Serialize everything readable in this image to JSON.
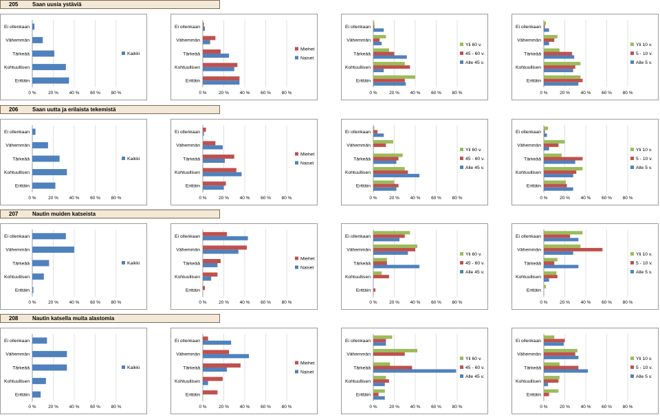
{
  "category_labels": [
    "Ei ollenkaan",
    "Vähemmän",
    "Tärkeää",
    "Kohtuullisen",
    "Erittäin"
  ],
  "axis_ticks": [
    "0 %",
    "20 %",
    "40 %",
    "60 %",
    "80 %"
  ],
  "colors": {
    "green": "#9bbb59",
    "red": "#c0504d",
    "blue": "#4f81bd"
  },
  "sections": [
    {
      "number": "205",
      "title": "Saan uusia ystäviä"
    },
    {
      "number": "206",
      "title": "Saan uutta ja erilaista tekemistä"
    },
    {
      "number": "207",
      "title": "Nautin muiden katseista"
    },
    {
      "number": "208",
      "title": "Nautin katsella muita alastomia"
    }
  ],
  "chart_data": [
    {
      "type": "bar",
      "section": "205",
      "panel": "total",
      "categories": [
        "Ei ollenkaan",
        "Vähemmän",
        "Tärkeää",
        "Kohtuullisen",
        "Erittäin"
      ],
      "xlim": [
        0,
        80
      ],
      "series": [
        {
          "name": "Kaikki",
          "color": "#4f81bd",
          "values": [
            2,
            10,
            21,
            32,
            35
          ]
        }
      ]
    },
    {
      "type": "bar",
      "section": "205",
      "panel": "gender",
      "categories": [
        "Ei ollenkaan",
        "Vähemmän",
        "Tärkeää",
        "Kohtuullisen",
        "Erittäin"
      ],
      "xlim": [
        0,
        80
      ],
      "series": [
        {
          "name": "Miehet",
          "color": "#c0504d",
          "values": [
            1,
            12,
            17,
            33,
            35
          ]
        },
        {
          "name": "Naiset",
          "color": "#4f81bd",
          "values": [
            2,
            7,
            25,
            30,
            35
          ]
        }
      ]
    },
    {
      "type": "bar",
      "section": "205",
      "panel": "age",
      "categories": [
        "Ei ollenkaan",
        "Vähemmän",
        "Tärkeää",
        "Kohtuullisen",
        "Erittäin"
      ],
      "xlim": [
        0,
        80
      ],
      "series": [
        {
          "name": "Yli 60 v.",
          "color": "#9bbb59",
          "values": [
            1,
            12,
            15,
            30,
            40
          ]
        },
        {
          "name": "45 - 60 v.",
          "color": "#c0504d",
          "values": [
            1,
            6,
            20,
            35,
            30
          ]
        },
        {
          "name": "Alle 45 v.",
          "color": "#4f81bd",
          "values": [
            10,
            8,
            32,
            10,
            31
          ]
        }
      ]
    },
    {
      "type": "bar",
      "section": "205",
      "panel": "years",
      "categories": [
        "Ei ollenkaan",
        "Vähemmän",
        "Tärkeää",
        "Kohtuullisen",
        "Erittäin"
      ],
      "xlim": [
        0,
        80
      ],
      "series": [
        {
          "name": "Yli 10 v.",
          "color": "#9bbb59",
          "values": [
            2,
            13,
            15,
            35,
            35
          ]
        },
        {
          "name": "5 - 10 v.",
          "color": "#c0504d",
          "values": [
            1,
            10,
            27,
            30,
            37
          ]
        },
        {
          "name": "Alle 5 v.",
          "color": "#4f81bd",
          "values": [
            5,
            5,
            29,
            28,
            33
          ]
        }
      ]
    },
    {
      "type": "bar",
      "section": "206",
      "panel": "total",
      "categories": [
        "Ei ollenkaan",
        "Vähemmän",
        "Tärkeää",
        "Kohtuullisen",
        "Erittäin"
      ],
      "xlim": [
        0,
        80
      ],
      "series": [
        {
          "name": "Kaikki",
          "color": "#4f81bd",
          "values": [
            3,
            15,
            26,
            33,
            22
          ]
        }
      ]
    },
    {
      "type": "bar",
      "section": "206",
      "panel": "gender",
      "categories": [
        "Ei ollenkaan",
        "Vähemmän",
        "Tärkeää",
        "Kohtuullisen",
        "Erittäin"
      ],
      "xlim": [
        0,
        80
      ],
      "series": [
        {
          "name": "Miehet",
          "color": "#c0504d",
          "values": [
            3,
            12,
            30,
            32,
            22
          ]
        },
        {
          "name": "Naiset",
          "color": "#4f81bd",
          "values": [
            1,
            19,
            21,
            37,
            20
          ]
        }
      ]
    },
    {
      "type": "bar",
      "section": "206",
      "panel": "age",
      "categories": [
        "Ei ollenkaan",
        "Vähemmän",
        "Tärkeää",
        "Kohtuullisen",
        "Erittäin"
      ],
      "xlim": [
        0,
        80
      ],
      "series": [
        {
          "name": "Yli 60 v.",
          "color": "#9bbb59",
          "values": [
            1,
            19,
            28,
            30,
            20
          ]
        },
        {
          "name": "45 - 60 v.",
          "color": "#c0504d",
          "values": [
            4,
            12,
            24,
            33,
            24
          ]
        },
        {
          "name": "Alle 45 v.",
          "color": "#4f81bd",
          "values": [
            10,
            0,
            22,
            44,
            22
          ]
        }
      ]
    },
    {
      "type": "bar",
      "section": "206",
      "panel": "years",
      "categories": [
        "Ei ollenkaan",
        "Vähemmän",
        "Tärkeää",
        "Kohtuullisen",
        "Erittäin"
      ],
      "xlim": [
        0,
        80
      ],
      "series": [
        {
          "name": "Yli 10 v.",
          "color": "#9bbb59",
          "values": [
            4,
            20,
            17,
            37,
            21
          ]
        },
        {
          "name": "5 - 10 v.",
          "color": "#c0504d",
          "values": [
            1,
            14,
            37,
            31,
            22
          ]
        },
        {
          "name": "Alle 5 v.",
          "color": "#4f81bd",
          "values": [
            3,
            5,
            30,
            28,
            28
          ]
        }
      ]
    },
    {
      "type": "bar",
      "section": "207",
      "panel": "total",
      "categories": [
        "Ei ollenkaan",
        "Vähemmän",
        "Tärkeää",
        "Kohtuullisen",
        "Erittäin"
      ],
      "xlim": [
        0,
        80
      ],
      "series": [
        {
          "name": "Kaikki",
          "color": "#4f81bd",
          "values": [
            32,
            40,
            16,
            11,
            1
          ]
        }
      ]
    },
    {
      "type": "bar",
      "section": "207",
      "panel": "gender",
      "categories": [
        "Ei ollenkaan",
        "Vähemmän",
        "Tärkeää",
        "Kohtuullisen",
        "Erittäin"
      ],
      "xlim": [
        0,
        80
      ],
      "series": [
        {
          "name": "Miehet",
          "color": "#c0504d",
          "values": [
            23,
            42,
            17,
            14,
            2
          ]
        },
        {
          "name": "Naiset",
          "color": "#4f81bd",
          "values": [
            43,
            34,
            14,
            8,
            0
          ]
        }
      ]
    },
    {
      "type": "bar",
      "section": "207",
      "panel": "age",
      "categories": [
        "Ei ollenkaan",
        "Vähemmän",
        "Tärkeää",
        "Kohtuullisen",
        "Erittäin"
      ],
      "xlim": [
        0,
        80
      ],
      "series": [
        {
          "name": "Yli 60 v.",
          "color": "#9bbb59",
          "values": [
            35,
            42,
            13,
            8,
            0
          ]
        },
        {
          "name": "45 - 60 v.",
          "color": "#c0504d",
          "values": [
            30,
            40,
            13,
            15,
            2
          ]
        },
        {
          "name": "Alle 45 v.",
          "color": "#4f81bd",
          "values": [
            25,
            33,
            44,
            0,
            0
          ]
        }
      ]
    },
    {
      "type": "bar",
      "section": "207",
      "panel": "years",
      "categories": [
        "Ei ollenkaan",
        "Vähemmän",
        "Tärkeää",
        "Kohtuullisen",
        "Erittäin"
      ],
      "xlim": [
        0,
        80
      ],
      "series": [
        {
          "name": "Yli 10 v.",
          "color": "#9bbb59",
          "values": [
            37,
            35,
            13,
            12,
            2
          ]
        },
        {
          "name": "5 - 10 v.",
          "color": "#c0504d",
          "values": [
            25,
            56,
            10,
            13,
            0
          ]
        },
        {
          "name": "Alle 5 v.",
          "color": "#4f81bd",
          "values": [
            33,
            28,
            33,
            5,
            0
          ]
        }
      ]
    },
    {
      "type": "bar",
      "section": "208",
      "panel": "total",
      "categories": [
        "Ei ollenkaan",
        "Vähemmän",
        "Tärkeää",
        "Kohtuullisen",
        "Erittäin"
      ],
      "xlim": [
        0,
        80
      ],
      "series": [
        {
          "name": "Kaikki",
          "color": "#4f81bd",
          "values": [
            14,
            33,
            33,
            13,
            8
          ]
        }
      ]
    },
    {
      "type": "bar",
      "section": "208",
      "panel": "gender",
      "categories": [
        "Ei ollenkaan",
        "Vähemmän",
        "Tärkeää",
        "Kohtuullisen",
        "Erittäin"
      ],
      "xlim": [
        0,
        80
      ],
      "series": [
        {
          "name": "Miehet",
          "color": "#c0504d",
          "values": [
            5,
            25,
            36,
            19,
            14
          ]
        },
        {
          "name": "Naiset",
          "color": "#4f81bd",
          "values": [
            27,
            44,
            23,
            5,
            0
          ]
        }
      ]
    },
    {
      "type": "bar",
      "section": "208",
      "panel": "age",
      "categories": [
        "Ei ollenkaan",
        "Vähemmän",
        "Tärkeää",
        "Kohtuullisen",
        "Erittäin"
      ],
      "xlim": [
        0,
        80
      ],
      "series": [
        {
          "name": "Yli 60 v.",
          "color": "#9bbb59",
          "values": [
            18,
            42,
            16,
            12,
            11
          ]
        },
        {
          "name": "45 - 60 v.",
          "color": "#c0504d",
          "values": [
            12,
            30,
            37,
            15,
            5
          ]
        },
        {
          "name": "Alle 45 v.",
          "color": "#4f81bd",
          "values": [
            12,
            0,
            79,
            11,
            11
          ]
        }
      ]
    },
    {
      "type": "bar",
      "section": "208",
      "panel": "years",
      "categories": [
        "Ei ollenkaan",
        "Vähemmän",
        "Tärkeää",
        "Kohtuullisen",
        "Erittäin"
      ],
      "xlim": [
        0,
        80
      ],
      "series": [
        {
          "name": "Yli 10 v.",
          "color": "#9bbb59",
          "values": [
            10,
            32,
            15,
            15,
            14
          ]
        },
        {
          "name": "5 - 10 v.",
          "color": "#c0504d",
          "values": [
            20,
            30,
            33,
            14,
            5
          ]
        },
        {
          "name": "Alle 5 v.",
          "color": "#4f81bd",
          "values": [
            19,
            33,
            42,
            4,
            0
          ]
        }
      ]
    }
  ]
}
